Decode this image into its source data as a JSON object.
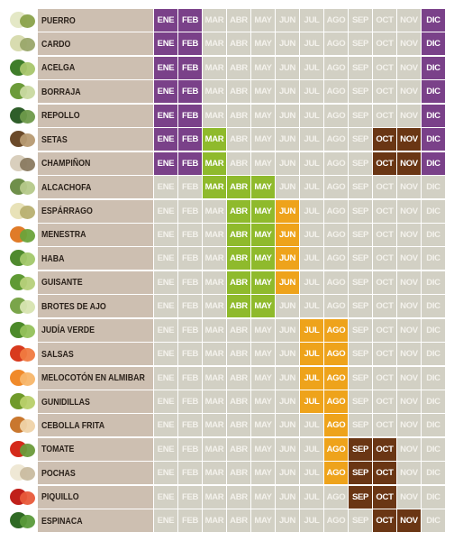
{
  "chart_data": {
    "type": "table",
    "columns": [
      "ENE",
      "FEB",
      "MAR",
      "ABR",
      "MAY",
      "JUN",
      "JUL",
      "AGO",
      "SEP",
      "OCT",
      "NOV",
      "DIC"
    ],
    "palette": {
      "purple": "#7a4189",
      "green": "#8fba2c",
      "orange": "#eea31b",
      "brown": "#6a3614",
      "off": "#d2d0c4"
    },
    "rows": [
      {
        "label": "PUERRO",
        "thumb": [
          "#e4e8c6",
          "#8aa24a"
        ],
        "cells": [
          "purple",
          "purple",
          "",
          "",
          "",
          "",
          "",
          "",
          "",
          "",
          "",
          "purple"
        ]
      },
      {
        "label": "CARDO",
        "thumb": [
          "#d8dcb0",
          "#9aa66a"
        ],
        "cells": [
          "purple",
          "purple",
          "",
          "",
          "",
          "",
          "",
          "",
          "",
          "",
          "",
          "purple"
        ]
      },
      {
        "label": "ACELGA",
        "thumb": [
          "#3f7d2a",
          "#a8c66c"
        ],
        "cells": [
          "purple",
          "purple",
          "",
          "",
          "",
          "",
          "",
          "",
          "",
          "",
          "",
          "purple"
        ]
      },
      {
        "label": "BORRAJA",
        "thumb": [
          "#6c9b3a",
          "#c9d9a0"
        ],
        "cells": [
          "purple",
          "purple",
          "",
          "",
          "",
          "",
          "",
          "",
          "",
          "",
          "",
          "purple"
        ]
      },
      {
        "label": "REPOLLO",
        "thumb": [
          "#2f5e2a",
          "#6e9a4a"
        ],
        "cells": [
          "purple",
          "purple",
          "",
          "",
          "",
          "",
          "",
          "",
          "",
          "",
          "",
          "purple"
        ]
      },
      {
        "label": "SETAS",
        "thumb": [
          "#6b4a2a",
          "#b79a72"
        ],
        "cells": [
          "purple",
          "purple",
          "green",
          "",
          "",
          "",
          "",
          "",
          "",
          "brown",
          "brown",
          "purple"
        ]
      },
      {
        "label": "CHAMPIÑON",
        "thumb": [
          "#d9cfbd",
          "#8a7a60"
        ],
        "cells": [
          "purple",
          "purple",
          "green",
          "",
          "",
          "",
          "",
          "",
          "",
          "brown",
          "brown",
          "purple"
        ]
      },
      {
        "label": "ALCACHOFA",
        "thumb": [
          "#6f8f4a",
          "#b5c98a"
        ],
        "cells": [
          "",
          "",
          "green",
          "green",
          "green",
          "",
          "",
          "",
          "",
          "",
          "",
          ""
        ]
      },
      {
        "label": "ESPÁRRAGO",
        "thumb": [
          "#e8e2b8",
          "#b8b070"
        ],
        "cells": [
          "",
          "",
          "",
          "green",
          "green",
          "orange",
          "",
          "",
          "",
          "",
          "",
          ""
        ]
      },
      {
        "label": "MENESTRA",
        "thumb": [
          "#e07b28",
          "#6ba33a"
        ],
        "cells": [
          "",
          "",
          "",
          "green",
          "green",
          "orange",
          "",
          "",
          "",
          "",
          "",
          ""
        ]
      },
      {
        "label": "HABA",
        "thumb": [
          "#4f8a2e",
          "#a2c86a"
        ],
        "cells": [
          "",
          "",
          "",
          "green",
          "green",
          "orange",
          "",
          "",
          "",
          "",
          "",
          ""
        ]
      },
      {
        "label": "GUISANTE",
        "thumb": [
          "#5f9a35",
          "#b6d07a"
        ],
        "cells": [
          "",
          "",
          "",
          "green",
          "green",
          "orange",
          "",
          "",
          "",
          "",
          "",
          ""
        ]
      },
      {
        "label": "BROTES DE AJO",
        "thumb": [
          "#7aa54a",
          "#d7e4b0"
        ],
        "cells": [
          "",
          "",
          "",
          "green",
          "green",
          "",
          "",
          "",
          "",
          "",
          "",
          ""
        ]
      },
      {
        "label": "JUDÍA VERDE",
        "thumb": [
          "#4c8a2a",
          "#93c15a"
        ],
        "cells": [
          "",
          "",
          "",
          "",
          "",
          "",
          "orange",
          "orange",
          "",
          "",
          "",
          ""
        ]
      },
      {
        "label": "SALSAS",
        "thumb": [
          "#d83a1e",
          "#f07a40"
        ],
        "cells": [
          "",
          "",
          "",
          "",
          "",
          "",
          "orange",
          "orange",
          "",
          "",
          "",
          ""
        ]
      },
      {
        "label": "MELOCOTÓN EN ALMIBAR",
        "thumb": [
          "#f08a2a",
          "#f7b66a"
        ],
        "cells": [
          "",
          "",
          "",
          "",
          "",
          "",
          "orange",
          "orange",
          "",
          "",
          "",
          ""
        ]
      },
      {
        "label": "GUNIDILLAS",
        "thumb": [
          "#6f9a2a",
          "#b8d06a"
        ],
        "cells": [
          "",
          "",
          "",
          "",
          "",
          "",
          "orange",
          "orange",
          "",
          "",
          "",
          ""
        ]
      },
      {
        "label": "CEBOLLA FRITA",
        "thumb": [
          "#c9772e",
          "#efd3a8"
        ],
        "cells": [
          "",
          "",
          "",
          "",
          "",
          "",
          "",
          "orange",
          "",
          "",
          "",
          ""
        ]
      },
      {
        "label": "TOMATE",
        "thumb": [
          "#d42a1a",
          "#6a9a3a"
        ],
        "cells": [
          "",
          "",
          "",
          "",
          "",
          "",
          "",
          "orange",
          "brown",
          "brown",
          "",
          ""
        ]
      },
      {
        "label": "POCHAS",
        "thumb": [
          "#efe8d5",
          "#c9bca0"
        ],
        "cells": [
          "",
          "",
          "",
          "",
          "",
          "",
          "",
          "orange",
          "brown",
          "brown",
          "",
          ""
        ]
      },
      {
        "label": "PIQUILLO",
        "thumb": [
          "#c0201a",
          "#e85a3a"
        ],
        "cells": [
          "",
          "",
          "",
          "",
          "",
          "",
          "",
          "",
          "brown",
          "brown",
          "",
          ""
        ]
      },
      {
        "label": "ESPINACA",
        "thumb": [
          "#2f6a24",
          "#5a9a3a"
        ],
        "cells": [
          "",
          "",
          "",
          "",
          "",
          "",
          "",
          "",
          "",
          "brown",
          "brown",
          ""
        ]
      }
    ]
  }
}
